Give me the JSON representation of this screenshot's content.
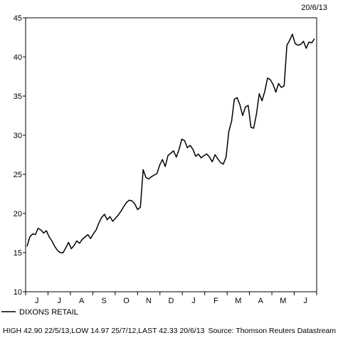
{
  "date_label": "20/6/13",
  "legend": {
    "series_name": "DIXONS RETAIL",
    "stats": "HIGH 42.90 22/5/13,LOW 14.97 25/7/12,LAST 42.33 20/6/13",
    "source": "Source: Thomson Reuters Datastream"
  },
  "chart_data": {
    "type": "line",
    "x_unit": "weeks from start (month ticks J J A S O N D J F M A M J)",
    "ylim": [
      10,
      45
    ],
    "yticks": [
      10,
      15,
      20,
      25,
      30,
      35,
      40,
      45
    ],
    "xticks": [
      "J",
      "J",
      "A",
      "S",
      "O",
      "N",
      "D",
      "J",
      "F",
      "M",
      "A",
      "M",
      "J"
    ],
    "grid": false,
    "series": [
      {
        "name": "DIXONS RETAIL",
        "color": "#000000",
        "x": [
          0,
          0.5,
          1,
          1.5,
          2,
          2.5,
          3,
          3.5,
          4,
          4.5,
          5,
          5.5,
          6,
          6.5,
          7,
          7.5,
          8,
          8.5,
          9,
          9.5,
          10,
          10.5,
          11,
          11.5,
          12,
          12.5,
          13,
          13.5,
          14,
          14.5,
          15,
          15.5,
          16,
          16.5,
          17,
          17.5,
          18,
          18.5,
          19,
          19.5,
          20,
          20.5,
          21,
          21.5,
          22,
          22.5,
          23,
          23.5,
          24,
          24.5,
          25,
          25.5,
          26,
          26.5,
          27,
          27.5,
          28,
          28.5,
          29,
          29.5,
          30,
          30.5,
          31,
          31.5,
          32,
          32.5,
          33,
          33.5,
          34,
          34.5,
          35,
          35.5,
          36,
          36.5,
          37,
          37.5,
          38,
          38.5,
          39,
          39.5,
          40,
          40.5,
          41,
          41.5,
          42,
          42.5,
          43,
          43.5,
          44,
          44.5,
          45,
          45.5,
          46,
          46.5,
          47,
          47.5,
          48,
          48.5,
          49,
          49.5,
          50,
          50.5,
          51,
          51.5,
          52
        ],
        "values": [
          15.8,
          17.0,
          17.4,
          17.3,
          18.1,
          17.9,
          17.5,
          17.8,
          17.0,
          16.5,
          15.8,
          15.3,
          15.0,
          14.97,
          15.6,
          16.3,
          15.5,
          15.9,
          16.5,
          16.2,
          16.7,
          17.0,
          17.3,
          16.8,
          17.4,
          17.9,
          18.8,
          19.5,
          19.9,
          19.2,
          19.6,
          19.0,
          19.4,
          19.8,
          20.3,
          20.9,
          21.4,
          21.7,
          21.6,
          21.2,
          20.5,
          20.8,
          25.6,
          24.6,
          24.4,
          24.7,
          24.9,
          25.1,
          26.2,
          26.9,
          26.0,
          27.4,
          27.7,
          28.0,
          27.2,
          28.2,
          29.5,
          29.3,
          28.4,
          28.7,
          28.2,
          27.3,
          27.6,
          27.1,
          27.4,
          27.6,
          27.2,
          26.6,
          27.5,
          27.0,
          26.5,
          26.3,
          27.2,
          30.5,
          31.8,
          34.6,
          34.8,
          33.9,
          32.5,
          33.6,
          33.8,
          31.0,
          30.9,
          32.7,
          35.3,
          34.4,
          35.6,
          37.3,
          37.1,
          36.5,
          35.5,
          36.6,
          36.1,
          36.3,
          41.5,
          42.1,
          42.9,
          41.7,
          41.5,
          41.6,
          42.0,
          41.1,
          41.9,
          41.8,
          42.33
        ]
      }
    ]
  }
}
